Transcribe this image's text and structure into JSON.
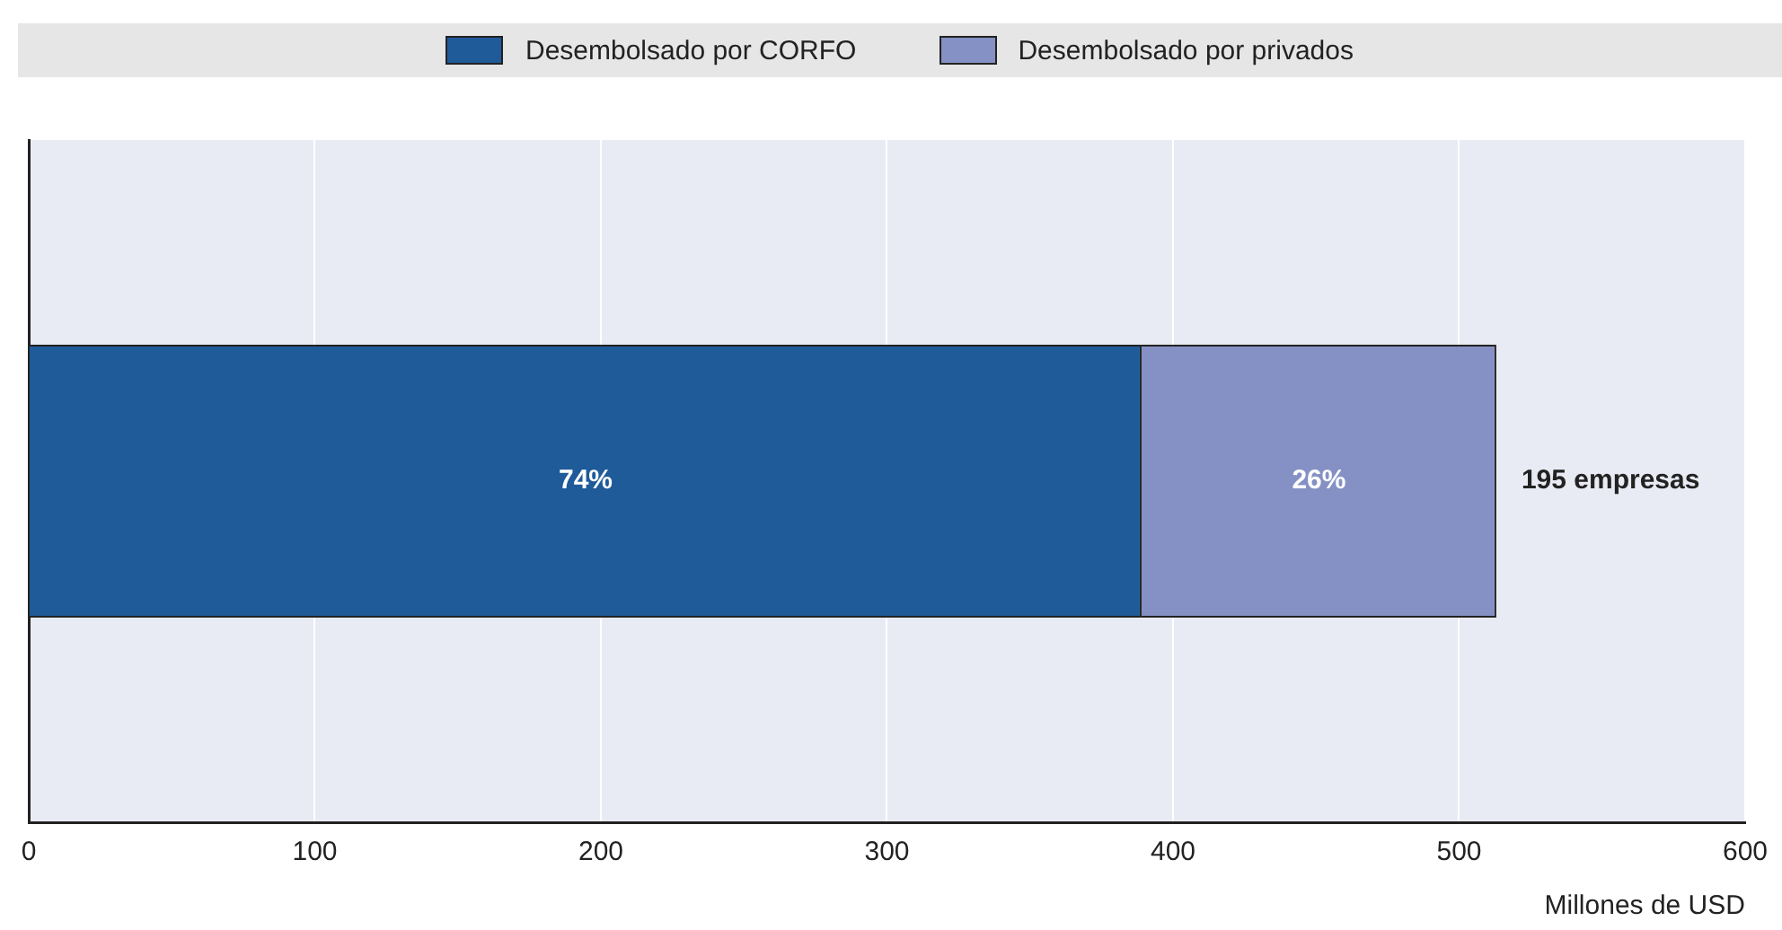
{
  "chart_data": {
    "type": "bar",
    "orientation": "horizontal",
    "stacked": true,
    "categories": [
      null
    ],
    "series": [
      {
        "name": "Desembolsado por CORFO",
        "color": "#1f5a99",
        "values": [
          389
        ]
      },
      {
        "name": "Desembolsado por privados",
        "color": "#8591c4",
        "values": [
          124
        ]
      }
    ],
    "xlim": [
      0,
      600
    ],
    "xticks": [
      0,
      100,
      200,
      300,
      400,
      500,
      600
    ],
    "xlabel": "Millones de USD",
    "grid": "x",
    "legend": "top",
    "annotations": [
      "74%",
      "26%",
      "195 empresas"
    ]
  }
}
